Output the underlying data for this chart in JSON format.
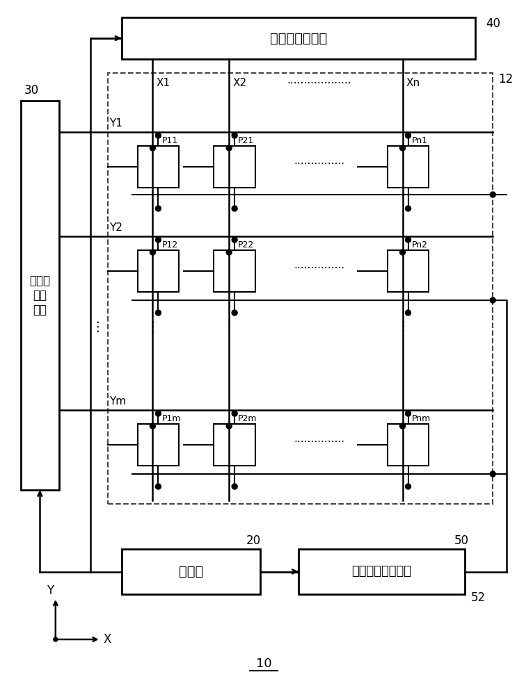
{
  "bg_color": "#ffffff",
  "line_color": "#000000",
  "dot_color": "#000000",
  "box_color": "#ffffff",
  "dashed_rect_color": "#555555",
  "title": "10",
  "labels": {
    "data_line_driver": "数据线驱动电路",
    "scan_line_driver": "扫描线\n驱动\n电路",
    "controller": "控制器",
    "common_electrode": "共用电极驱动电路",
    "ref_40": "40",
    "ref_30": "30",
    "ref_12": "12",
    "ref_20": "20",
    "ref_50": "50",
    "ref_52": "52",
    "X1": "X1",
    "X2": "X2",
    "Xn": "Xn",
    "Y1": "Y1",
    "Y2": "Y2",
    "Ym": "Ym",
    "P11": "P11",
    "P21": "P21",
    "Pn1": "Pn1",
    "P12": "P12",
    "P22": "P22",
    "Pn2": "Pn2",
    "P1m": "P1m",
    "P2m": "P2m",
    "Pnm": "Pnm"
  }
}
